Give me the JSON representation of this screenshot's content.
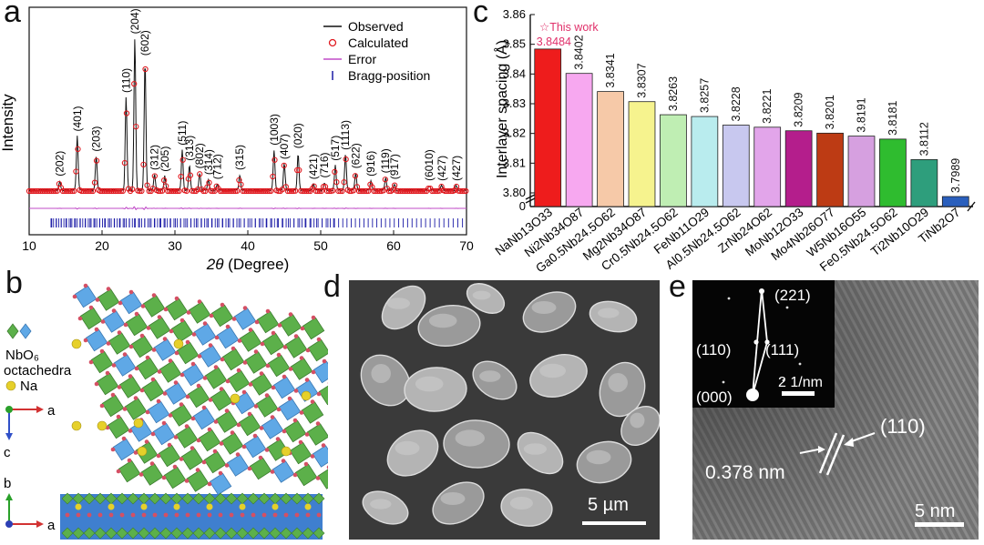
{
  "panels": {
    "a": {
      "letter": "a"
    },
    "b": {
      "letter": "b"
    },
    "c": {
      "letter": "c"
    },
    "d": {
      "letter": "d"
    },
    "e": {
      "letter": "e"
    }
  },
  "chart_data": [
    {
      "type": "line",
      "panel": "a",
      "xlabel_symbol": "2θ",
      "xlabel_text": " (Degree)",
      "ylabel": "Intensity",
      "xlim": [
        10,
        70
      ],
      "xticks": [
        10,
        20,
        30,
        40,
        50,
        60,
        70
      ],
      "legend": [
        "Observed",
        "Calculated",
        "Error",
        "Bragg-position"
      ],
      "legend_placement": "top-right",
      "colors": {
        "observed": "#111111",
        "calculated": "#e0191f",
        "error": "#c04bc7",
        "bragg": "#1a1aa6"
      },
      "peaks": [
        {
          "x": 14.2,
          "h": 0.06,
          "label": "(202)"
        },
        {
          "x": 16.6,
          "h": 0.35,
          "label": "(401)"
        },
        {
          "x": 19.2,
          "h": 0.22,
          "label": "(203)"
        },
        {
          "x": 23.3,
          "h": 0.6,
          "label": "(110)"
        },
        {
          "x": 24.5,
          "h": 0.98,
          "label": "(204)"
        },
        {
          "x": 25.9,
          "h": 0.84,
          "label": "(602)"
        },
        {
          "x": 27.2,
          "h": 0.1,
          "label": "(312)"
        },
        {
          "x": 28.6,
          "h": 0.09,
          "label": "(205)"
        },
        {
          "x": 31.0,
          "h": 0.26,
          "label": "(511)"
        },
        {
          "x": 32.0,
          "h": 0.16,
          "label": "(313)"
        },
        {
          "x": 33.4,
          "h": 0.11,
          "label": "(802)"
        },
        {
          "x": 34.6,
          "h": 0.07,
          "label": "(314)"
        },
        {
          "x": 35.8,
          "h": 0.04,
          "label": "(712)"
        },
        {
          "x": 38.9,
          "h": 0.1,
          "label": "(315)"
        },
        {
          "x": 43.6,
          "h": 0.26,
          "label": "(1003)"
        },
        {
          "x": 45.0,
          "h": 0.17,
          "label": "(407)"
        },
        {
          "x": 46.9,
          "h": 0.24,
          "label": "(020)"
        },
        {
          "x": 49.0,
          "h": 0.04,
          "label": "(421)"
        },
        {
          "x": 50.5,
          "h": 0.05,
          "label": "(716)"
        },
        {
          "x": 52.0,
          "h": 0.16,
          "label": "(517)"
        },
        {
          "x": 53.4,
          "h": 0.23,
          "label": "(1113)"
        },
        {
          "x": 54.8,
          "h": 0.11,
          "label": "(622)"
        },
        {
          "x": 56.9,
          "h": 0.06,
          "label": "(916)"
        },
        {
          "x": 58.9,
          "h": 0.08,
          "label": "(119)"
        },
        {
          "x": 60.1,
          "h": 0.04,
          "label": "(917)"
        },
        {
          "x": 64.9,
          "h": 0.03,
          "label": "(6010)"
        },
        {
          "x": 66.6,
          "h": 0.03,
          "label": "(427)"
        },
        {
          "x": 68.6,
          "h": 0.03,
          "label": "(427)"
        }
      ]
    },
    {
      "type": "bar",
      "panel": "c",
      "ylabel": "Interlayer spacing (Å)",
      "ylim": [
        3.8,
        3.86
      ],
      "yticks": [
        "3.80",
        "3.81",
        "3.82",
        "3.83",
        "3.84",
        "3.85",
        "3.86"
      ],
      "y_zero_tick": "0",
      "annotation": "☆This work",
      "annotation_color": "#e0306a",
      "categories": [
        "NaNb13O33",
        "Ni2Nb34O87",
        "Ga0.5Nb24.5O62",
        "Mg2Nb34O87",
        "Cr0.5Nb24.5O62",
        "FeNb11O29",
        "Al0.5Nb24.5O62",
        "ZrNb24O62",
        "MoNb12O33",
        "Mo4Nb26O77",
        "W5Nb16O55",
        "Fe0.5Nb24.5O62",
        "Ti2Nb10O29",
        "TiNb2O7"
      ],
      "values": [
        3.8484,
        3.8402,
        3.8341,
        3.8307,
        3.8263,
        3.8257,
        3.8228,
        3.8221,
        3.8209,
        3.8201,
        3.8191,
        3.8181,
        3.8112,
        3.7989
      ],
      "value_labels": [
        "3.8484",
        "3.8402",
        "3.8341",
        "3.8307",
        "3.8263",
        "3.8257",
        "3.8228",
        "3.8221",
        "3.8209",
        "3.8201",
        "3.8191",
        "3.8181",
        "3.8112",
        "3.7989"
      ],
      "colors": [
        "#ee1c1c",
        "#f7a8f0",
        "#f6c9a8",
        "#f6f38e",
        "#bfeeb3",
        "#b9ecee",
        "#c8c8ef",
        "#e2a5ea",
        "#b41e8c",
        "#bd3b14",
        "#d6a0e0",
        "#2fbc2f",
        "#2e9e7c",
        "#2a5fbd"
      ]
    }
  ],
  "panel_b": {
    "legend_formula": "NbO₆",
    "legend_word": "octachedra",
    "legend_na": "Na",
    "axis_top": {
      "horizontal": "a",
      "vertical": "c"
    },
    "axis_bottom": {
      "horizontal": "a",
      "vertical": "b"
    },
    "colors": {
      "green": "#5cb04a",
      "blue": "#5fa8e6",
      "na": "#e6d02a",
      "oxygen": "#d45064"
    }
  },
  "panel_d": {
    "scale_label": "5 µm"
  },
  "panel_e": {
    "scale_label": "5 nm",
    "inset_scale_label": "2 1/nm",
    "spot_labels": [
      "(221)",
      "(110)",
      "(111)",
      "(000)"
    ],
    "plane_label": "(110)",
    "spacing_label": "0.378 nm"
  }
}
